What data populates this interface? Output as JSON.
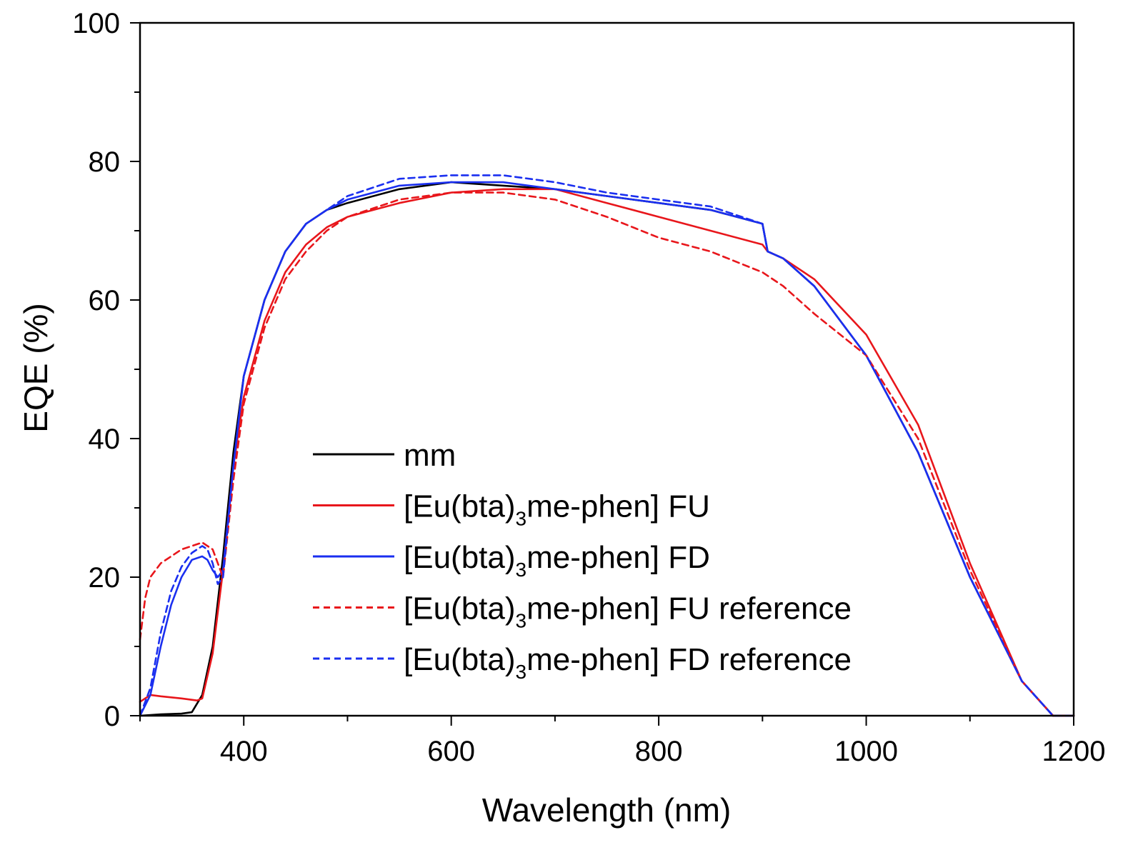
{
  "chart_data": {
    "type": "line",
    "title": "",
    "xlabel": "Wavelength (nm)",
    "ylabel": "EQE (%)",
    "xlim": [
      300,
      1200
    ],
    "ylim": [
      0,
      100
    ],
    "xticks": [
      400,
      600,
      800,
      1000,
      1200
    ],
    "yticks": [
      0,
      20,
      40,
      60,
      80,
      100
    ],
    "grid": false,
    "legend_position": "center",
    "series": [
      {
        "name": "mm",
        "legend_main": "mm",
        "legend_sub": "",
        "legend_tail": "",
        "color": "#000000",
        "dash": "solid",
        "x": [
          300,
          320,
          340,
          350,
          360,
          370,
          380,
          390,
          400,
          420,
          440,
          460,
          480,
          500,
          550,
          600,
          650,
          700,
          750,
          800,
          850,
          900,
          905,
          920,
          950,
          1000,
          1050,
          1100,
          1150,
          1180,
          1200
        ],
        "y": [
          0,
          0.2,
          0.3,
          0.5,
          3,
          10,
          23,
          38,
          49,
          60,
          67,
          71,
          73,
          74,
          76,
          77,
          76.5,
          76,
          75,
          74,
          73,
          71,
          67,
          66,
          62,
          52,
          38,
          20,
          5,
          0,
          0
        ]
      },
      {
        "name": "[Eu(bta)3me-phen] FU",
        "legend_main": "[Eu(bta)",
        "legend_sub": "3",
        "legend_tail": "me-phen] FU",
        "color": "#e8161b",
        "dash": "solid",
        "x": [
          300,
          310,
          320,
          340,
          355,
          360,
          370,
          380,
          390,
          400,
          420,
          440,
          460,
          480,
          500,
          550,
          600,
          650,
          700,
          750,
          800,
          850,
          900,
          905,
          920,
          950,
          1000,
          1050,
          1100,
          1150,
          1180,
          1200
        ],
        "y": [
          2,
          3,
          2.8,
          2.5,
          2.2,
          2.5,
          9,
          21,
          36,
          46,
          57,
          64,
          68,
          70.5,
          72,
          74,
          75.5,
          76,
          76,
          74,
          72,
          70,
          68,
          67,
          66,
          63,
          55,
          42,
          22,
          5,
          0,
          0
        ]
      },
      {
        "name": "[Eu(bta)3me-phen] FD",
        "legend_main": "[Eu(bta)",
        "legend_sub": "3",
        "legend_tail": "me-phen] FD",
        "color": "#1a2ff0",
        "dash": "solid",
        "x": [
          300,
          310,
          320,
          330,
          340,
          350,
          360,
          365,
          370,
          375,
          380,
          390,
          400,
          420,
          440,
          460,
          480,
          500,
          550,
          600,
          650,
          700,
          750,
          800,
          850,
          900,
          905,
          920,
          950,
          1000,
          1050,
          1100,
          1150,
          1180,
          1200
        ],
        "y": [
          0,
          3,
          10,
          16,
          20,
          22.5,
          23,
          22.5,
          21,
          20,
          21,
          36,
          49,
          60,
          67,
          71,
          73,
          74.5,
          76.5,
          77,
          77,
          76,
          75,
          74,
          73,
          71,
          67,
          66,
          62,
          52,
          38,
          20,
          5,
          0,
          0
        ]
      },
      {
        "name": "[Eu(bta)3me-phen] FU reference",
        "legend_main": "[Eu(bta)",
        "legend_sub": "3",
        "legend_tail": "me-phen] FU reference",
        "color": "#e8161b",
        "dash": "dashed",
        "x": [
          300,
          305,
          310,
          320,
          330,
          340,
          350,
          360,
          370,
          375,
          380,
          390,
          400,
          420,
          440,
          460,
          480,
          500,
          550,
          600,
          650,
          700,
          750,
          800,
          850,
          900,
          920,
          950,
          1000,
          1050,
          1100,
          1150,
          1180,
          1200
        ],
        "y": [
          11,
          17,
          20,
          22,
          23,
          24,
          24.5,
          25,
          24,
          22,
          20,
          34,
          45,
          56,
          63,
          67,
          70,
          72,
          74.5,
          75.5,
          75.5,
          74.5,
          72,
          69,
          67,
          64,
          62,
          58,
          52,
          40,
          21,
          5,
          0,
          0
        ]
      },
      {
        "name": "[Eu(bta)3me-phen] FD reference",
        "legend_main": "[Eu(bta)",
        "legend_sub": "3",
        "legend_tail": "me-phen] FD reference",
        "color": "#1a2ff0",
        "dash": "dashed",
        "x": [
          300,
          310,
          320,
          330,
          340,
          350,
          360,
          365,
          370,
          375,
          380,
          390,
          400,
          420,
          440,
          460,
          480,
          500,
          550,
          600,
          650,
          700,
          750,
          800,
          850,
          900,
          905,
          920,
          950,
          1000,
          1050,
          1100,
          1150,
          1180,
          1200
        ],
        "y": [
          0,
          4,
          12,
          18,
          21.5,
          23.5,
          24.5,
          24,
          22,
          19,
          20,
          36,
          49,
          60,
          67,
          71,
          73,
          75,
          77.5,
          78,
          78,
          77,
          75.5,
          74.5,
          73.5,
          71,
          67,
          66,
          62,
          52,
          38,
          20,
          5,
          0,
          0
        ]
      }
    ]
  }
}
